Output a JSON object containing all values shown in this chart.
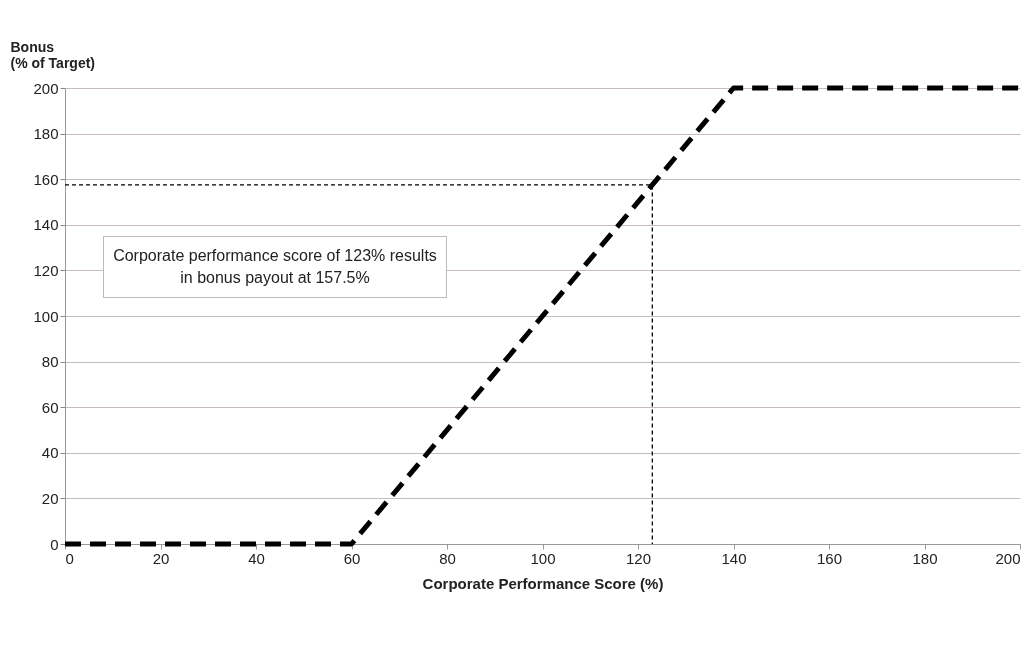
{
  "chart_data": {
    "type": "line",
    "xlabel": "Corporate Performance Score (%)",
    "ylabel": "Bonus\n(% of Target)",
    "annotations": [
      "Corporate performance score of 123% results in bonus payout at 157.5%"
    ],
    "series": [
      {
        "color": "#000000",
        "line_style": "dashed",
        "x": [
          0,
          60,
          140,
          200
        ],
        "values": [
          0,
          0,
          200,
          200
        ]
      },
      {
        "color": "#000000",
        "line_style": "dotted",
        "x": [
          0,
          123,
          123
        ],
        "values": [
          157.5,
          157.5,
          0
        ]
      }
    ],
    "xlim": [
      0,
      200
    ],
    "xticks": [
      0,
      20,
      40,
      60,
      80,
      100,
      120,
      140,
      160,
      180,
      200
    ],
    "ylim": [
      0,
      200
    ],
    "yticks": [
      0,
      20,
      40,
      60,
      80,
      100,
      120,
      140,
      160,
      180,
      200
    ],
    "grid": "y"
  }
}
